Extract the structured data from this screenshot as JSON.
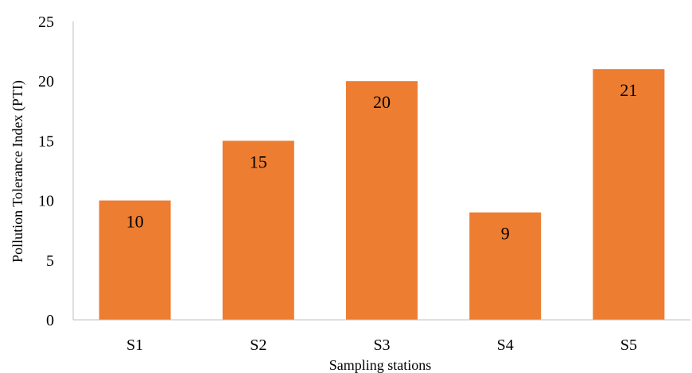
{
  "chart_data": {
    "type": "bar",
    "title": "",
    "xlabel": "Sampling stations",
    "ylabel": "Pollution Tolerance Index (PTI)",
    "categories": [
      "S1",
      "S2",
      "S3",
      "S4",
      "S5"
    ],
    "values": [
      10,
      15,
      20,
      9,
      21
    ],
    "data_labels": [
      "10",
      "15",
      "20",
      "9",
      "21"
    ],
    "ylim": [
      0,
      25
    ],
    "yticks": [
      0,
      5,
      10,
      15,
      20,
      25
    ],
    "ytick_labels": [
      "0",
      "5",
      "10",
      "15",
      "20",
      "25"
    ],
    "grid": false,
    "legend": "none",
    "colors": {
      "bar": "#ED7D31",
      "axis": "#BFBFBF",
      "text": "#000000"
    }
  }
}
